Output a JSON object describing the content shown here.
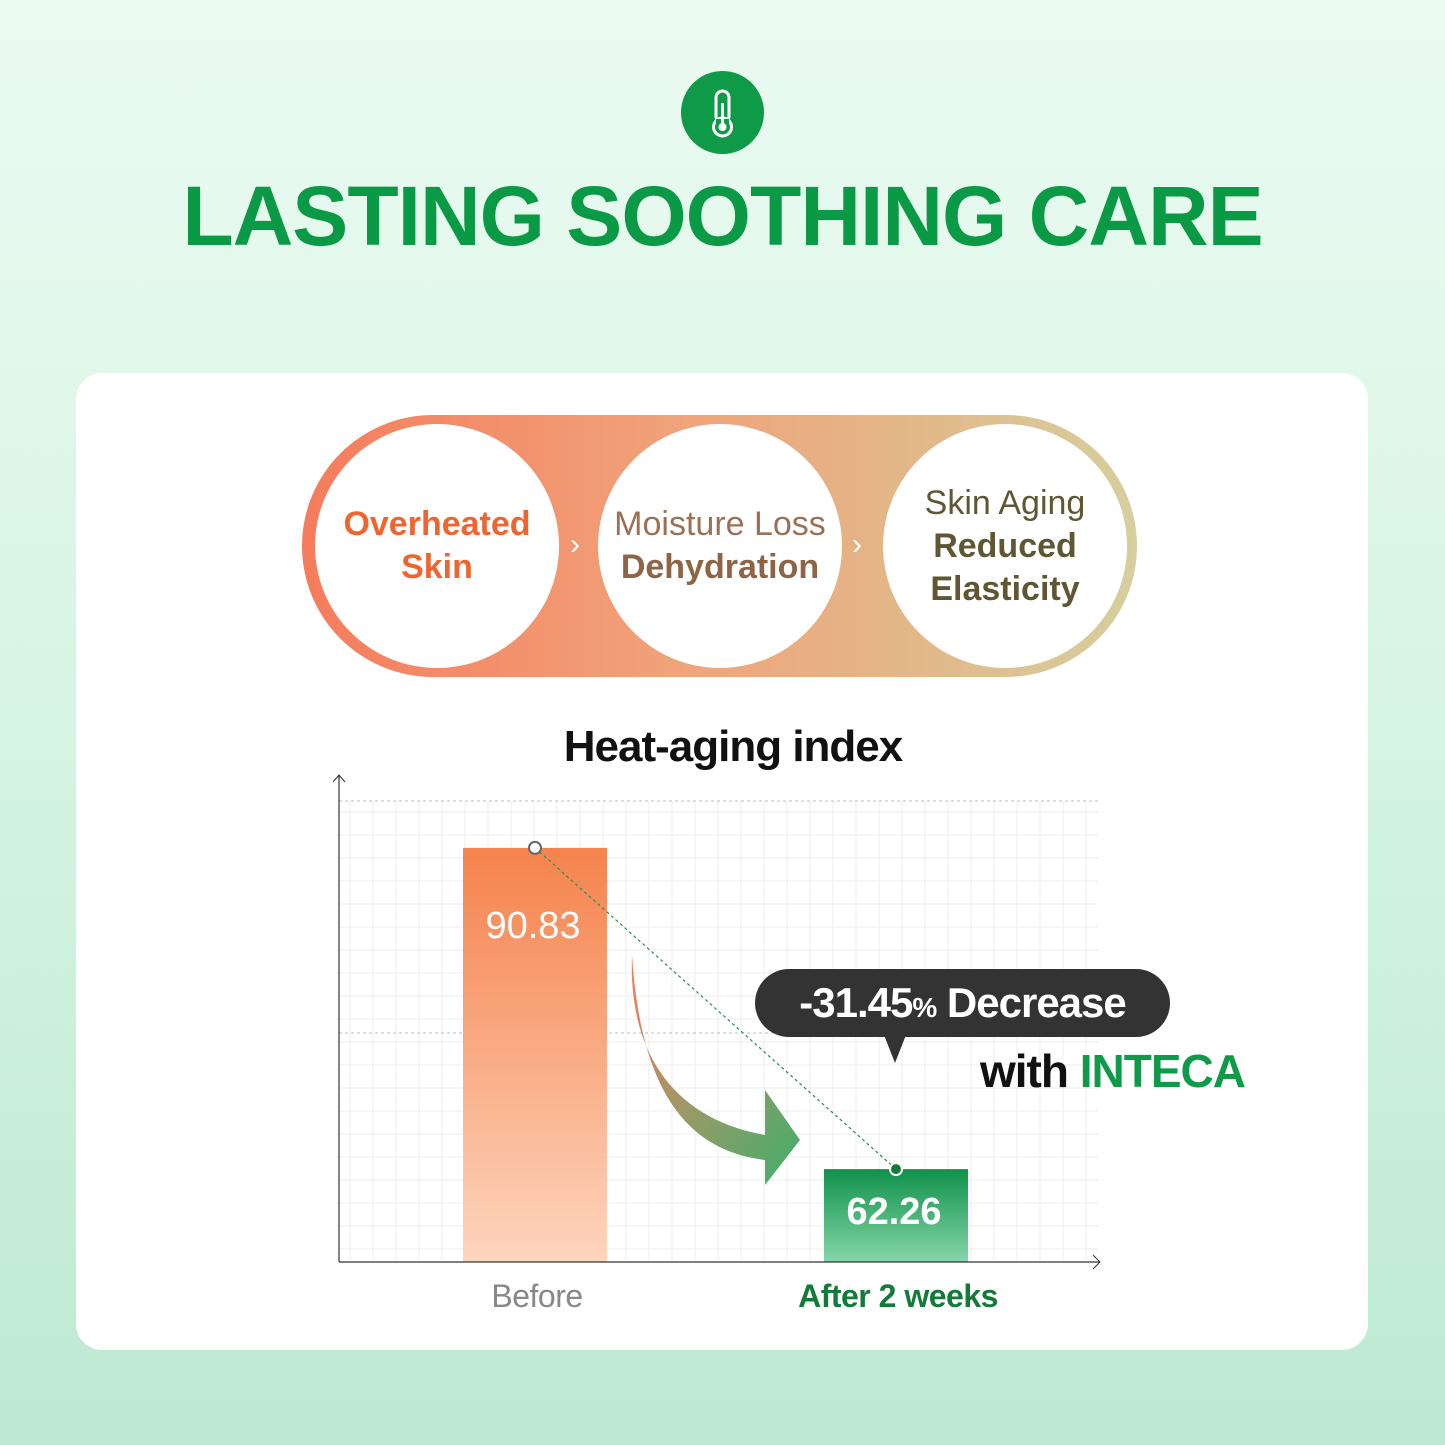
{
  "header": {
    "icon": "thermometer-icon",
    "title": "LASTING SOOTHING CARE"
  },
  "flow": {
    "steps": [
      {
        "line1": "Overheated",
        "line2": "Skin"
      },
      {
        "line1": "Moisture Loss",
        "line2": "Dehydration"
      },
      {
        "line1": "Skin Aging",
        "line2": "Reduced",
        "line3": "Elasticity"
      }
    ],
    "separator_icon": "chevron-right-icon"
  },
  "colors": {
    "brand_green": "#0a9944",
    "before_orange": "#f58550",
    "after_green": "#139a4c",
    "bubble": "#333333"
  },
  "chart_data": {
    "type": "bar",
    "title": "Heat-aging index",
    "categories": [
      "Before",
      "After 2 weeks"
    ],
    "values": [
      90.83,
      62.26
    ],
    "value_labels": [
      "90.83",
      "62.26"
    ],
    "ylim": [
      54,
      95
    ],
    "grid": true,
    "annotation": {
      "value": "-31.45",
      "unit": "%",
      "text": "Decrease",
      "with": "with",
      "brand": "INTECA"
    }
  }
}
